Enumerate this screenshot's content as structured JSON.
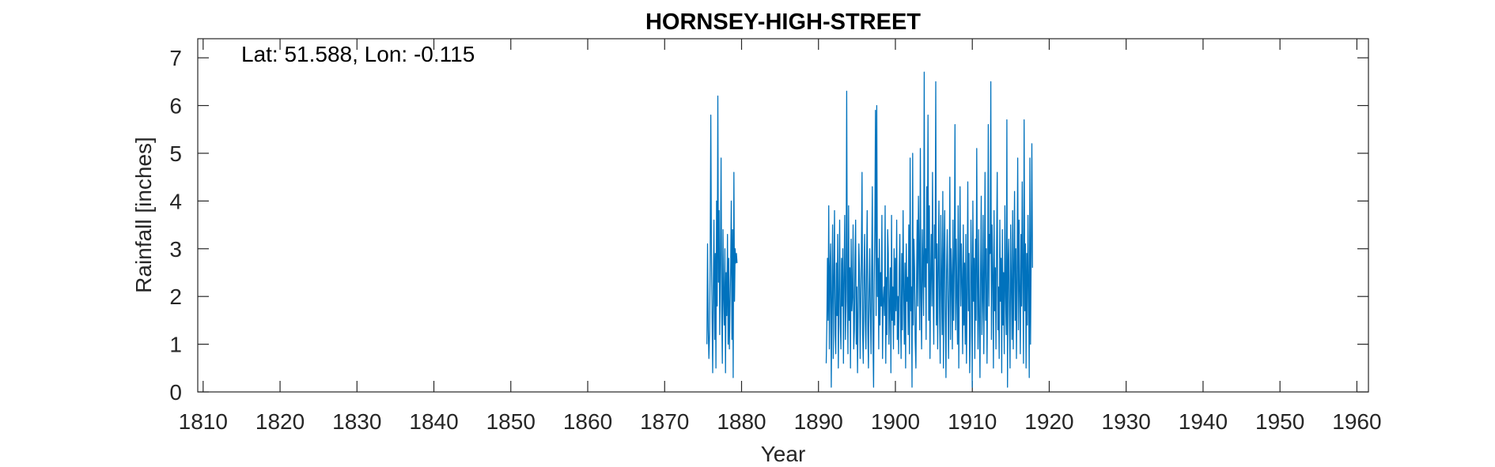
{
  "chart_data": {
    "type": "line",
    "title": "HORNSEY-HIGH-STREET",
    "annotation": "Lat: 51.588, Lon: -0.115",
    "xlabel": "Year",
    "ylabel": "Rainfall [inches]",
    "xlim": [
      1809.3,
      1961.5
    ],
    "ylim": [
      0,
      7.4
    ],
    "xticks": [
      1810,
      1820,
      1830,
      1840,
      1850,
      1860,
      1870,
      1880,
      1890,
      1900,
      1910,
      1920,
      1930,
      1940,
      1950,
      1960
    ],
    "yticks": [
      0,
      1,
      2,
      3,
      4,
      5,
      6,
      7
    ],
    "grid": false,
    "line_color": "#0072BD",
    "series": [
      {
        "segments": [
          {
            "start_year": 1875.5,
            "step": 0.0833,
            "values": [
              1.0,
              3.1,
              1.3,
              0.7,
              1.2,
              2.7,
              5.8,
              2.9,
              1.6,
              0.4,
              2.2,
              3.6,
              1.1,
              2.9,
              0.5,
              4.0,
              1.8,
              6.2,
              2.3,
              3.8,
              1.2,
              2.6,
              4.9,
              1.7,
              0.6,
              3.4,
              2.0,
              1.4,
              3.0,
              0.4,
              2.5,
              1.6,
              3.3,
              1.0,
              2.8,
              0.9,
              1.8,
              2.6,
              4.0,
              1.1,
              3.4,
              0.3,
              4.6,
              1.9,
              3.0,
              2.7,
              2.9,
              2.7
            ]
          },
          {
            "start_year": 1891.0,
            "step": 0.0833,
            "values": [
              0.6,
              1.4,
              2.8,
              1.5,
              3.9,
              0.9,
              2.6,
              3.1,
              0.1,
              1.9,
              3.5,
              0.7,
              2.4,
              3.8,
              1.2,
              0.8,
              2.7,
              1.6,
              3.3,
              0.5,
              2.1,
              3.6,
              1.4,
              0.9,
              2.8,
              1.8,
              3.0,
              0.6,
              2.4,
              3.7,
              1.1,
              1.9,
              6.3,
              2.2,
              0.8,
              3.9,
              1.5,
              2.6,
              0.5,
              3.2,
              1.7,
              2.0,
              3.5,
              0.9,
              1.3,
              2.8,
              3.6,
              1.0,
              2.2,
              0.4,
              1.8,
              3.1,
              2.5,
              0.7,
              1.9,
              2.9,
              4.6,
              1.2,
              0.6,
              2.4,
              3.3,
              1.5,
              0.9,
              2.7,
              3.8,
              1.3,
              0.5,
              2.1,
              3.0,
              1.7,
              0.8,
              2.6,
              4.3,
              1.1,
              0.1,
              2.3,
              3.5,
              5.9,
              1.6,
              6.0,
              2.0,
              2.8,
              0.9,
              3.2,
              1.4,
              2.5,
              1.8,
              3.7,
              0.7,
              1.9,
              2.2,
              1.6,
              3.9,
              0.6,
              2.4,
              1.2,
              3.4,
              2.9,
              1.0,
              1.8,
              2.6,
              0.4,
              3.7,
              1.5,
              2.2,
              0.9,
              3.0,
              1.4,
              2.8,
              1.7,
              3.6,
              1.1,
              2.0,
              0.8,
              2.5,
              3.3,
              1.6,
              0.7,
              2.9,
              1.3,
              3.8,
              2.1,
              1.0,
              2.7,
              0.5,
              3.1,
              1.9,
              2.4,
              1.2,
              3.5,
              0.8,
              4.9,
              1.7,
              2.2,
              0.1,
              5.0,
              1.4,
              3.2,
              2.6,
              1.1,
              0.5,
              2.3,
              3.6,
              1.8,
              4.1,
              2.9,
              1.3,
              5.1,
              2.0,
              0.9,
              3.4,
              2.5,
              1.6,
              6.7,
              2.2,
              3.0,
              1.1,
              4.3,
              2.7,
              5.8,
              1.5,
              3.9,
              0.7,
              2.4,
              3.3,
              1.8,
              4.6,
              2.1,
              1.0,
              3.5,
              2.8,
              6.5,
              1.4,
              3.1,
              0.9,
              2.6,
              4.0,
              1.7,
              0.6,
              3.7,
              2.3,
              1.2,
              4.2,
              0.5,
              2.9,
              3.8,
              1.6,
              0.3,
              2.5,
              3.4,
              1.9,
              0.7,
              2.2,
              4.5,
              1.1,
              3.0,
              2.4,
              0.9,
              3.6,
              1.5,
              2.8,
              5.6,
              1.3,
              3.2,
              2.0,
              1.0,
              3.9,
              0.5,
              2.6,
              4.3,
              1.8,
              3.1,
              2.3,
              0.8,
              3.5,
              1.4,
              2.7,
              1.0,
              3.3,
              0.6,
              2.1,
              4.4,
              1.7,
              2.9,
              0.4,
              1.2,
              3.6,
              2.5,
              0.1,
              4.0,
              1.9,
              2.8,
              0.7,
              3.2,
              1.5,
              5.1,
              2.3,
              0.9,
              3.4,
              1.6,
              0.3,
              2.6,
              4.1,
              1.2,
              2.0,
              3.7,
              0.8,
              2.4,
              4.6,
              1.5,
              3.0,
              0.6,
              2.2,
              5.6,
              1.8,
              3.3,
              2.9,
              6.5,
              1.1,
              3.5,
              2.4,
              0.5,
              3.8,
              1.7,
              2.6,
              0.9,
              3.1,
              4.6,
              1.3,
              2.2,
              0.7,
              3.6,
              1.9,
              2.8,
              0.4,
              3.4,
              1.4,
              2.5,
              0.8,
              3.9,
              2.0,
              1.2,
              5.7,
              0.1,
              2.7,
              3.2,
              1.6,
              0.5,
              3.5,
              2.3,
              1.1,
              3.8,
              0.9,
              2.6,
              4.2,
              1.5,
              3.0,
              0.7,
              2.4,
              4.9,
              1.3,
              3.6,
              2.1,
              0.8,
              3.3,
              1.8,
              4.4,
              2.5,
              0.6,
              5.7,
              1.7,
              3.1,
              0.5,
              2.9,
              1.4,
              3.7,
              2.2,
              0.3,
              4.9,
              1.0,
              3.0,
              5.2,
              2.6
            ]
          }
        ]
      }
    ]
  }
}
